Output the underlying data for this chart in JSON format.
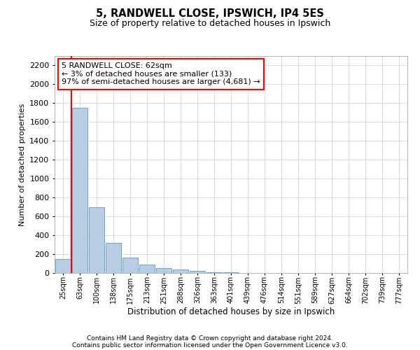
{
  "title1": "5, RANDWELL CLOSE, IPSWICH, IP4 5ES",
  "title2": "Size of property relative to detached houses in Ipswich",
  "xlabel": "Distribution of detached houses by size in Ipswich",
  "ylabel": "Number of detached properties",
  "categories": [
    "25sqm",
    "63sqm",
    "100sqm",
    "138sqm",
    "175sqm",
    "213sqm",
    "251sqm",
    "288sqm",
    "326sqm",
    "363sqm",
    "401sqm",
    "439sqm",
    "476sqm",
    "514sqm",
    "551sqm",
    "589sqm",
    "627sqm",
    "664sqm",
    "702sqm",
    "739sqm",
    "777sqm"
  ],
  "values": [
    150,
    1750,
    700,
    320,
    160,
    90,
    50,
    35,
    20,
    10,
    5,
    3,
    1,
    0,
    0,
    0,
    0,
    0,
    0,
    0,
    0
  ],
  "bar_color": "#b8cce4",
  "bar_edge_color": "#5b9bd5",
  "highlight_color": "#ff0000",
  "ylim": [
    0,
    2300
  ],
  "yticks": [
    0,
    200,
    400,
    600,
    800,
    1000,
    1200,
    1400,
    1600,
    1800,
    2000,
    2200
  ],
  "annotation_title": "5 RANDWELL CLOSE: 62sqm",
  "annotation_line1": "← 3% of detached houses are smaller (133)",
  "annotation_line2": "97% of semi-detached houses are larger (4,681) →",
  "footer1": "Contains HM Land Registry data © Crown copyright and database right 2024.",
  "footer2": "Contains public sector information licensed under the Open Government Licence v3.0.",
  "background_color": "#ffffff",
  "grid_color": "#d0d0d0"
}
